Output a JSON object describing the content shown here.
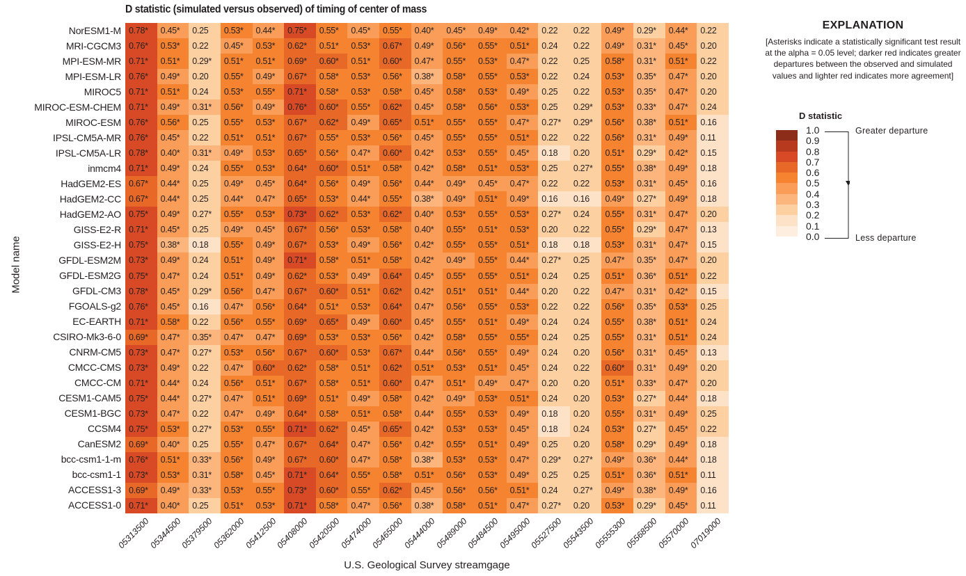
{
  "chart_data": {
    "type": "heatmap",
    "title": "D statistic (simulated versus observed) of timing of center of mass",
    "xlabel": "U.S. Geological Survey streamgage",
    "ylabel": "Model name",
    "significance_marker": "*",
    "x": [
      "05313500",
      "05344500",
      "05379500",
      "05362000",
      "05412500",
      "05408000",
      "05420500",
      "05474000",
      "05465000",
      "05444000",
      "05489000",
      "05484500",
      "05495000",
      "05527500",
      "05543500",
      "05555300",
      "05568500",
      "05570000",
      "07019000"
    ],
    "y": [
      "NorESM1-M",
      "MRI-CGCM3",
      "MPI-ESM-MR",
      "MPI-ESM-LR",
      "MIROC5",
      "MIROC-ESM-CHEM",
      "MIROC-ESM",
      "IPSL-CM5A-MR",
      "IPSL-CM5A-LR",
      "inmcm4",
      "HadGEM2-ES",
      "HadGEM2-CC",
      "HadGEM2-AO",
      "GISS-E2-R",
      "GISS-E2-H",
      "GFDL-ESM2M",
      "GFDL-ESM2G",
      "GFDL-CM3",
      "FGOALS-g2",
      "EC-EARTH",
      "CSIRO-Mk3-6-0",
      "CNRM-CM5",
      "CMCC-CMS",
      "CMCC-CM",
      "CESM1-CAM5",
      "CESM1-BGC",
      "CCSM4",
      "CanESM2",
      "bcc-csm1-1-m",
      "bcc-csm1-1",
      "ACCESS1-3",
      "ACCESS1-0"
    ],
    "cells": [
      [
        "0.78*",
        "0.45*",
        "0.25",
        "0.53*",
        "0.44*",
        "0.75*",
        "0.55*",
        "0.45*",
        "0.55*",
        "0.40*",
        "0.45*",
        "0.49*",
        "0.42*",
        "0.22",
        "0.22",
        "0.49*",
        "0.29*",
        "0.44*",
        "0.22"
      ],
      [
        "0.76*",
        "0.53*",
        "0.22",
        "0.45*",
        "0.53*",
        "0.62*",
        "0.51*",
        "0.53*",
        "0.67*",
        "0.49*",
        "0.56*",
        "0.55*",
        "0.51*",
        "0.24",
        "0.22",
        "0.49*",
        "0.31*",
        "0.45*",
        "0.20"
      ],
      [
        "0.71*",
        "0.51*",
        "0.29*",
        "0.51*",
        "0.51*",
        "0.69*",
        "0.60*",
        "0.51*",
        "0.60*",
        "0.47*",
        "0.55*",
        "0.53*",
        "0.47*",
        "0.22",
        "0.25",
        "0.58*",
        "0.31*",
        "0.51*",
        "0.22"
      ],
      [
        "0.76*",
        "0.49*",
        "0.20",
        "0.55*",
        "0.49*",
        "0.67*",
        "0.58*",
        "0.53*",
        "0.56*",
        "0.38*",
        "0.58*",
        "0.55*",
        "0.53*",
        "0.22",
        "0.24",
        "0.53*",
        "0.35*",
        "0.47*",
        "0.20"
      ],
      [
        "0.71*",
        "0.51*",
        "0.24",
        "0.53*",
        "0.55*",
        "0.71*",
        "0.58*",
        "0.53*",
        "0.58*",
        "0.45*",
        "0.58*",
        "0.53*",
        "0.49*",
        "0.25",
        "0.22",
        "0.53*",
        "0.35*",
        "0.47*",
        "0.20"
      ],
      [
        "0.71*",
        "0.49*",
        "0.31*",
        "0.56*",
        "0.49*",
        "0.76*",
        "0.60*",
        "0.55*",
        "0.62*",
        "0.45*",
        "0.58*",
        "0.56*",
        "0.53*",
        "0.25",
        "0.29*",
        "0.53*",
        "0.33*",
        "0.47*",
        "0.24"
      ],
      [
        "0.76*",
        "0.56*",
        "0.25",
        "0.55*",
        "0.53*",
        "0.67*",
        "0.62*",
        "0.49*",
        "0.65*",
        "0.51*",
        "0.55*",
        "0.55*",
        "0.47*",
        "0.27*",
        "0.29*",
        "0.56*",
        "0.38*",
        "0.51*",
        "0.16"
      ],
      [
        "0.76*",
        "0.45*",
        "0.22",
        "0.51*",
        "0.51*",
        "0.67*",
        "0.55*",
        "0.53*",
        "0.56*",
        "0.45*",
        "0.55*",
        "0.55*",
        "0.51*",
        "0.22",
        "0.22",
        "0.56*",
        "0.31*",
        "0.49*",
        "0.11"
      ],
      [
        "0.78*",
        "0.40*",
        "0.31*",
        "0.49*",
        "0.53*",
        "0.65*",
        "0.56*",
        "0.47*",
        "0.60*",
        "0.42*",
        "0.53*",
        "0.55*",
        "0.45*",
        "0.18",
        "0.20",
        "0.51*",
        "0.29*",
        "0.42*",
        "0.15"
      ],
      [
        "0.71*",
        "0.49*",
        "0.24",
        "0.55*",
        "0.53*",
        "0.64*",
        "0.60*",
        "0.51*",
        "0.58*",
        "0.42*",
        "0.58*",
        "0.51*",
        "0.53*",
        "0.25",
        "0.27*",
        "0.55*",
        "0.38*",
        "0.49*",
        "0.18"
      ],
      [
        "0.67*",
        "0.44*",
        "0.25",
        "0.49*",
        "0.45*",
        "0.64*",
        "0.56*",
        "0.49*",
        "0.56*",
        "0.44*",
        "0.49*",
        "0.45*",
        "0.47*",
        "0.22",
        "0.22",
        "0.53*",
        "0.31*",
        "0.45*",
        "0.16"
      ],
      [
        "0.67*",
        "0.44*",
        "0.25",
        "0.44*",
        "0.47*",
        "0.65*",
        "0.53*",
        "0.44*",
        "0.55*",
        "0.38*",
        "0.49*",
        "0.51*",
        "0.49*",
        "0.16",
        "0.16",
        "0.49*",
        "0.27*",
        "0.49*",
        "0.18"
      ],
      [
        "0.75*",
        "0.49*",
        "0.27*",
        "0.55*",
        "0.53*",
        "0.73*",
        "0.62*",
        "0.53*",
        "0.62*",
        "0.40*",
        "0.53*",
        "0.55*",
        "0.53*",
        "0.27*",
        "0.24",
        "0.55*",
        "0.31*",
        "0.47*",
        "0.20"
      ],
      [
        "0.71*",
        "0.45*",
        "0.25",
        "0.49*",
        "0.45*",
        "0.67*",
        "0.56*",
        "0.53*",
        "0.58*",
        "0.40*",
        "0.55*",
        "0.51*",
        "0.53*",
        "0.20",
        "0.22",
        "0.55*",
        "0.29*",
        "0.47*",
        "0.13"
      ],
      [
        "0.75*",
        "0.38*",
        "0.18",
        "0.55*",
        "0.49*",
        "0.67*",
        "0.53*",
        "0.49*",
        "0.56*",
        "0.42*",
        "0.55*",
        "0.55*",
        "0.51*",
        "0.18",
        "0.18",
        "0.53*",
        "0.31*",
        "0.47*",
        "0.15"
      ],
      [
        "0.73*",
        "0.49*",
        "0.24",
        "0.51*",
        "0.49*",
        "0.71*",
        "0.58*",
        "0.51*",
        "0.58*",
        "0.42*",
        "0.49*",
        "0.55*",
        "0.44*",
        "0.27*",
        "0.25",
        "0.47*",
        "0.35*",
        "0.47*",
        "0.20"
      ],
      [
        "0.75*",
        "0.47*",
        "0.24",
        "0.51*",
        "0.49*",
        "0.62*",
        "0.53*",
        "0.49*",
        "0.64*",
        "0.45*",
        "0.55*",
        "0.55*",
        "0.51*",
        "0.24",
        "0.25",
        "0.51*",
        "0.36*",
        "0.51*",
        "0.22"
      ],
      [
        "0.78*",
        "0.45*",
        "0.29*",
        "0.56*",
        "0.47*",
        "0.67*",
        "0.60*",
        "0.51*",
        "0.62*",
        "0.42*",
        "0.51*",
        "0.51*",
        "0.44*",
        "0.20",
        "0.22",
        "0.47*",
        "0.31*",
        "0.42*",
        "0.15"
      ],
      [
        "0.76*",
        "0.45*",
        "0.16",
        "0.47*",
        "0.56*",
        "0.64*",
        "0.51*",
        "0.53*",
        "0.64*",
        "0.47*",
        "0.56*",
        "0.55*",
        "0.53*",
        "0.22",
        "0.22",
        "0.56*",
        "0.35*",
        "0.53*",
        "0.25"
      ],
      [
        "0.71*",
        "0.58*",
        "0.22",
        "0.56*",
        "0.55*",
        "0.69*",
        "0.65*",
        "0.49*",
        "0.60*",
        "0.45*",
        "0.55*",
        "0.51*",
        "0.49*",
        "0.24",
        "0.24",
        "0.55*",
        "0.38*",
        "0.51*",
        "0.24"
      ],
      [
        "0.69*",
        "0.47*",
        "0.35*",
        "0.47*",
        "0.47*",
        "0.69*",
        "0.53*",
        "0.53*",
        "0.56*",
        "0.42*",
        "0.58*",
        "0.55*",
        "0.55*",
        "0.24",
        "0.25",
        "0.55*",
        "0.31*",
        "0.51*",
        "0.24"
      ],
      [
        "0.73*",
        "0.47*",
        "0.27*",
        "0.53*",
        "0.56*",
        "0.67*",
        "0.60*",
        "0.53*",
        "0.67*",
        "0.44*",
        "0.56*",
        "0.55*",
        "0.49*",
        "0.24",
        "0.20",
        "0.56*",
        "0.31*",
        "0.45*",
        "0.13"
      ],
      [
        "0.73*",
        "0.49*",
        "0.22",
        "0.47*",
        "0.60*",
        "0.62*",
        "0.58*",
        "0.51*",
        "0.62*",
        "0.51*",
        "0.53*",
        "0.51*",
        "0.45*",
        "0.24",
        "0.22",
        "0.60*",
        "0.31*",
        "0.49*",
        "0.20"
      ],
      [
        "0.71*",
        "0.44*",
        "0.24",
        "0.56*",
        "0.51*",
        "0.67*",
        "0.58*",
        "0.51*",
        "0.60*",
        "0.47*",
        "0.51*",
        "0.49*",
        "0.47*",
        "0.20",
        "0.20",
        "0.51*",
        "0.33*",
        "0.47*",
        "0.20"
      ],
      [
        "0.75*",
        "0.44*",
        "0.27*",
        "0.47*",
        "0.51*",
        "0.69*",
        "0.51*",
        "0.49*",
        "0.58*",
        "0.42*",
        "0.49*",
        "0.53*",
        "0.51*",
        "0.24",
        "0.20",
        "0.53*",
        "0.27*",
        "0.44*",
        "0.18"
      ],
      [
        "0.73*",
        "0.47*",
        "0.22",
        "0.47*",
        "0.49*",
        "0.64*",
        "0.58*",
        "0.51*",
        "0.58*",
        "0.44*",
        "0.55*",
        "0.53*",
        "0.49*",
        "0.18",
        "0.20",
        "0.55*",
        "0.31*",
        "0.49*",
        "0.25"
      ],
      [
        "0.75*",
        "0.53*",
        "0.27*",
        "0.53*",
        "0.55*",
        "0.71*",
        "0.62*",
        "0.45*",
        "0.65*",
        "0.42*",
        "0.53*",
        "0.53*",
        "0.45*",
        "0.18",
        "0.24",
        "0.53*",
        "0.27*",
        "0.45*",
        "0.22"
      ],
      [
        "0.69*",
        "0.40*",
        "0.25",
        "0.55*",
        "0.47*",
        "0.67*",
        "0.64*",
        "0.47*",
        "0.56*",
        "0.42*",
        "0.55*",
        "0.51*",
        "0.49*",
        "0.25",
        "0.20",
        "0.58*",
        "0.29*",
        "0.49*",
        "0.18"
      ],
      [
        "0.76*",
        "0.51*",
        "0.33*",
        "0.56*",
        "0.49*",
        "0.67*",
        "0.60*",
        "0.47*",
        "0.58*",
        "0.38*",
        "0.53*",
        "0.53*",
        "0.47*",
        "0.29*",
        "0.27*",
        "0.49*",
        "0.36*",
        "0.44*",
        "0.18"
      ],
      [
        "0.73*",
        "0.53*",
        "0.31*",
        "0.58*",
        "0.45*",
        "0.71*",
        "0.64*",
        "0.55*",
        "0.58*",
        "0.51*",
        "0.56*",
        "0.53*",
        "0.49*",
        "0.25",
        "0.25",
        "0.51*",
        "0.36*",
        "0.51*",
        "0.11"
      ],
      [
        "0.69*",
        "0.49*",
        "0.33*",
        "0.53*",
        "0.55*",
        "0.73*",
        "0.60*",
        "0.55*",
        "0.62*",
        "0.45*",
        "0.56*",
        "0.56*",
        "0.51*",
        "0.24",
        "0.27*",
        "0.49*",
        "0.38*",
        "0.49*",
        "0.16"
      ],
      [
        "0.71*",
        "0.40*",
        "0.25",
        "0.51*",
        "0.53*",
        "0.71*",
        "0.58*",
        "0.47*",
        "0.56*",
        "0.38*",
        "0.58*",
        "0.51*",
        "0.47*",
        "0.27*",
        "0.20",
        "0.53*",
        "0.29*",
        "0.45*",
        "0.11"
      ]
    ],
    "color_scale": {
      "bins": [
        0.0,
        0.1,
        0.2,
        0.3,
        0.4,
        0.5,
        0.6,
        0.7,
        0.8,
        0.9,
        1.0
      ],
      "colors": [
        "#fdeee0",
        "#fde2c8",
        "#fdd0a2",
        "#fcb57c",
        "#f99d58",
        "#f5832f",
        "#e86828",
        "#d84a25",
        "#b83a1e",
        "#8c2d1a"
      ]
    },
    "legend_position": "right"
  },
  "explanation": {
    "title": "EXPLANATION",
    "text": "[Asterisks indicate a statistically significant test result at the alpha = 0.05 level; darker red indicates greater departures between the observed and simulated values and lighter red indicates more agreement]",
    "legend_title": "D statistic",
    "ticks": [
      "1.0",
      "0.9",
      "0.8",
      "0.7",
      "0.6",
      "0.5",
      "0.4",
      "0.3",
      "0.2",
      "0.1",
      "0.0"
    ],
    "greater_label": "Greater departure",
    "less_label": "Less departure"
  }
}
